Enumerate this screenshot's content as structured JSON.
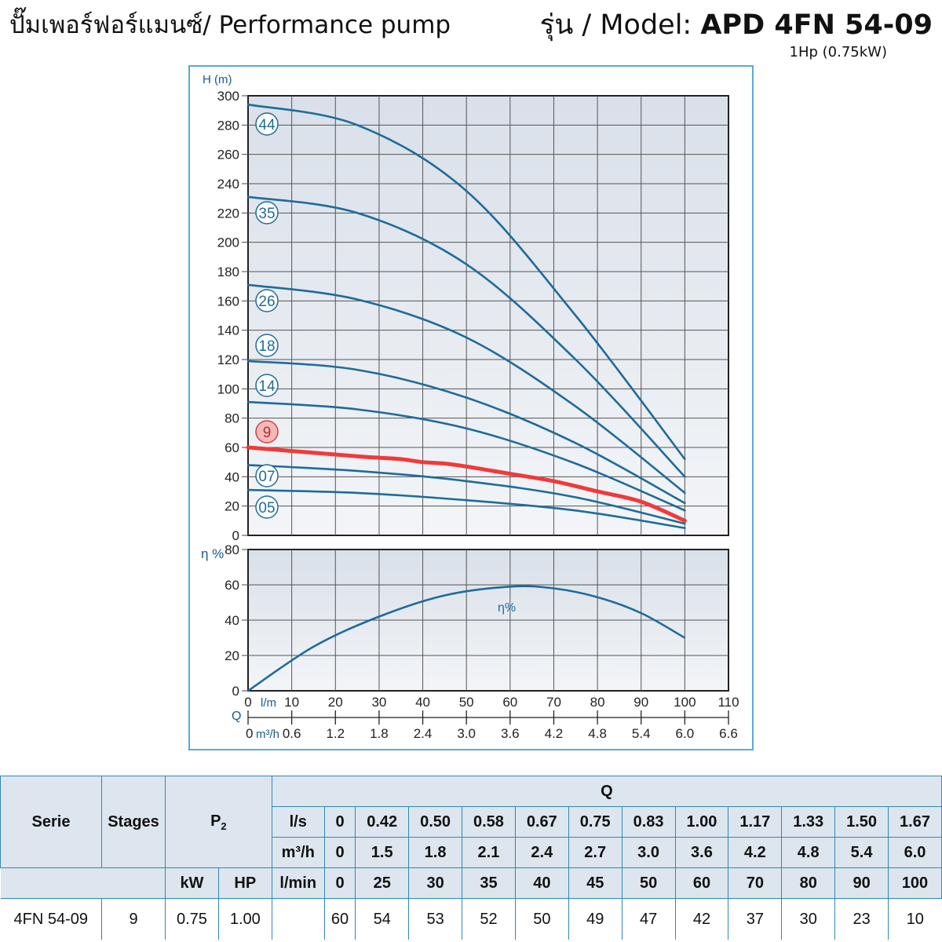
{
  "header": {
    "title_th": "ปั๊มเพอร์ฟอร์แมนซ์/ Performance pump",
    "model_prefix": "รุ่น / Model: ",
    "model_name": "APD 4FN 54-09",
    "power": "1Hp (0.75kW)"
  },
  "colors": {
    "curve": "#1f6b99",
    "highlight": "#f03a3a",
    "frame": "#5aa9d6",
    "axis_text": "#1a5a8a",
    "grid_bg": "#e8edf3",
    "table_header_bg": "#dde6ee"
  },
  "chart_data": [
    {
      "type": "line",
      "ylabel": "H (m)",
      "ylim": [
        0,
        300
      ],
      "yticks": [
        0,
        20,
        40,
        60,
        80,
        100,
        120,
        140,
        160,
        180,
        200,
        220,
        240,
        260,
        280,
        300
      ],
      "xlim": [
        0,
        110
      ],
      "xticks_lmin": [
        0,
        10,
        20,
        30,
        40,
        50,
        60,
        70,
        80,
        90,
        100,
        110
      ],
      "xticks_m3h": [
        "0",
        "0.6",
        "1.2",
        "1.8",
        "2.4",
        "3.0",
        "3.6",
        "4.2",
        "4.8",
        "5.4",
        "6.0",
        "6.6"
      ],
      "xaxis_symbol": "Q",
      "xunit_lmin": "l/m",
      "xunit_m3h": "m³/h",
      "grid": true,
      "series": [
        {
          "name": "44",
          "x": [
            0,
            25,
            50,
            75,
            100
          ],
          "y": [
            294,
            280,
            235,
            150,
            52
          ]
        },
        {
          "name": "35",
          "x": [
            0,
            25,
            50,
            75,
            100
          ],
          "y": [
            231,
            220,
            185,
            120,
            40
          ]
        },
        {
          "name": "26",
          "x": [
            0,
            25,
            50,
            75,
            100
          ],
          "y": [
            171,
            161,
            135,
            88,
            29
          ]
        },
        {
          "name": "18",
          "x": [
            0,
            25,
            50,
            75,
            100
          ],
          "y": [
            119,
            113,
            94,
            63,
            22
          ]
        },
        {
          "name": "14",
          "x": [
            0,
            25,
            50,
            75,
            100
          ],
          "y": [
            91,
            86,
            73,
            49,
            17
          ]
        },
        {
          "name": "9",
          "x": [
            0,
            25,
            30,
            35,
            40,
            45,
            50,
            60,
            70,
            80,
            90,
            100
          ],
          "y": [
            60,
            54,
            53,
            52,
            50,
            49,
            47,
            42,
            37,
            30,
            23,
            10
          ],
          "highlight": true
        },
        {
          "name": "07",
          "x": [
            0,
            25,
            50,
            75,
            100
          ],
          "y": [
            48,
            44,
            37,
            26,
            8
          ]
        },
        {
          "name": "05",
          "x": [
            0,
            25,
            50,
            75,
            100
          ],
          "y": [
            31,
            29,
            24,
            17,
            5
          ]
        }
      ]
    },
    {
      "type": "line",
      "ylabel": "η %",
      "ylim": [
        0,
        80
      ],
      "yticks": [
        0,
        20,
        40,
        60,
        80
      ],
      "xlim": [
        0,
        110
      ],
      "grid": true,
      "series": [
        {
          "name": "η%",
          "x": [
            0,
            15,
            30,
            45,
            60,
            70,
            80,
            90,
            100
          ],
          "y": [
            0,
            25,
            42,
            54,
            59,
            58,
            53,
            44,
            30
          ]
        }
      ]
    }
  ],
  "table": {
    "col_serie": "Serie",
    "col_stages": "Stages",
    "col_p2": "P",
    "col_p2_sub": "2",
    "col_q": "Q",
    "unit_ls": "l/s",
    "unit_m3h": "m³/h",
    "unit_kw": "kW",
    "unit_hp": "HP",
    "unit_lmin": "l/min",
    "ls": [
      "0",
      "0.42",
      "0.50",
      "0.58",
      "0.67",
      "0.75",
      "0.83",
      "1.00",
      "1.17",
      "1.33",
      "1.50",
      "1.67"
    ],
    "m3h": [
      "0",
      "1.5",
      "1.8",
      "2.1",
      "2.4",
      "2.7",
      "3.0",
      "3.6",
      "4.2",
      "4.8",
      "5.4",
      "6.0"
    ],
    "lmin": [
      "0",
      "25",
      "30",
      "35",
      "40",
      "45",
      "50",
      "60",
      "70",
      "80",
      "90",
      "100"
    ],
    "row": {
      "serie": "4FN 54-09",
      "stages": "9",
      "kw": "0.75",
      "hp": "1.00",
      "head": [
        "60",
        "54",
        "53",
        "52",
        "50",
        "49",
        "47",
        "42",
        "37",
        "30",
        "23",
        "10"
      ]
    }
  }
}
